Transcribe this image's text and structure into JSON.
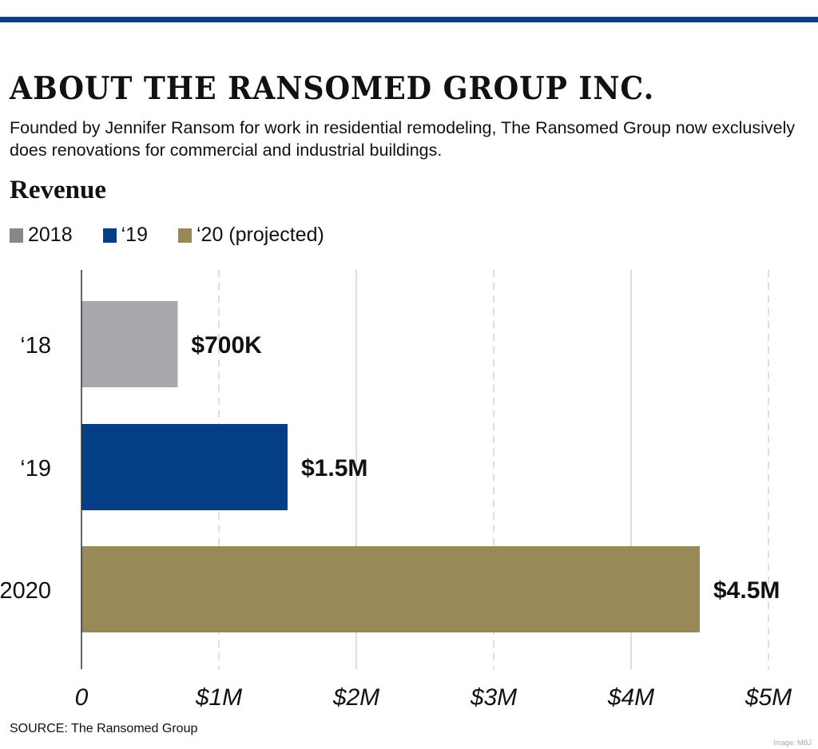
{
  "header": {
    "title": "ABOUT THE RANSOMED GROUP INC.",
    "subtitle": "Founded by Jennifer Ransom for work in residential remodeling, The Ransomed Group now exclusively does renovations for commercial and industrial buildings.",
    "section": "Revenue"
  },
  "chart_data": {
    "type": "bar",
    "orientation": "horizontal",
    "title": "Revenue",
    "categories": [
      "‘18",
      "‘19",
      "2020"
    ],
    "values": [
      0.7,
      1.5,
      4.5
    ],
    "data_labels": [
      "$700K",
      "$1.5M",
      "$4.5M"
    ],
    "colors": [
      "#a7a8ab",
      "#033e86",
      "#978a57"
    ],
    "legend": [
      {
        "label": "2018",
        "color": "#87888b"
      },
      {
        "label": "‘19",
        "color": "#033e86"
      },
      {
        "label": "‘20 (projected)",
        "color": "#978a57"
      }
    ],
    "legend_position": "top-left",
    "xlim": [
      0,
      5
    ],
    "x_ticks": [
      0,
      1,
      2,
      3,
      4,
      5
    ],
    "x_tick_labels": [
      "0",
      "$1M",
      "$2M",
      "$3M",
      "$4M",
      "$5M"
    ],
    "xlabel": "",
    "ylabel": "",
    "grid": true
  },
  "footer": {
    "source": "SOURCE: The Ransomed Group",
    "credit": "Image: MBJ"
  }
}
